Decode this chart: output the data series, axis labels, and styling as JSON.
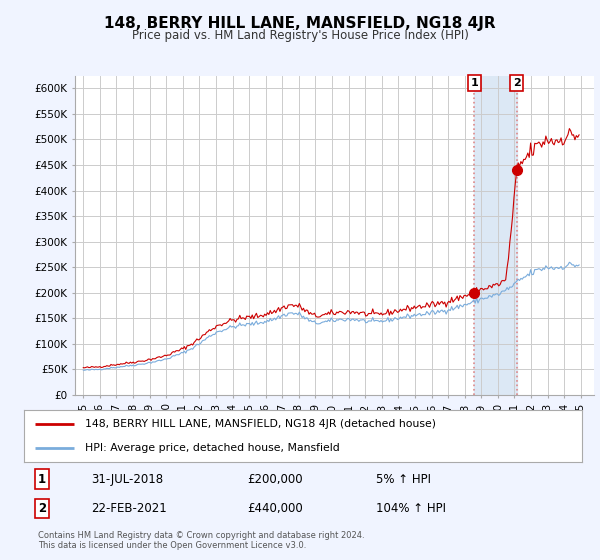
{
  "title": "148, BERRY HILL LANE, MANSFIELD, NG18 4JR",
  "subtitle": "Price paid vs. HM Land Registry's House Price Index (HPI)",
  "ylabel_ticks": [
    "£0",
    "£50K",
    "£100K",
    "£150K",
    "£200K",
    "£250K",
    "£300K",
    "£350K",
    "£400K",
    "£450K",
    "£500K",
    "£550K",
    "£600K"
  ],
  "ytick_values": [
    0,
    50000,
    100000,
    150000,
    200000,
    250000,
    300000,
    350000,
    400000,
    450000,
    500000,
    550000,
    600000
  ],
  "ylim": [
    0,
    625000
  ],
  "sale1": {
    "date_num": 2018.58,
    "price": 200000,
    "label": "1"
  },
  "sale2": {
    "date_num": 2021.14,
    "price": 440000,
    "label": "2"
  },
  "annotation1": {
    "date": "31-JUL-2018",
    "price": "£200,000",
    "hpi_pct": "5% ↑ HPI"
  },
  "annotation2": {
    "date": "22-FEB-2021",
    "price": "£440,000",
    "hpi_pct": "104% ↑ HPI"
  },
  "legend_line1": "148, BERRY HILL LANE, MANSFIELD, NG18 4JR (detached house)",
  "legend_line2": "HPI: Average price, detached house, Mansfield",
  "footer": "Contains HM Land Registry data © Crown copyright and database right 2024.\nThis data is licensed under the Open Government Licence v3.0.",
  "line_color_red": "#cc0000",
  "line_color_blue": "#7aacdc",
  "background_color": "#f0f4ff",
  "plot_bg": "#ffffff",
  "grid_color": "#cccccc",
  "sale_marker_color": "#cc0000",
  "dashed_line_color": "#dd8888",
  "shade_color": "#dce8f5"
}
